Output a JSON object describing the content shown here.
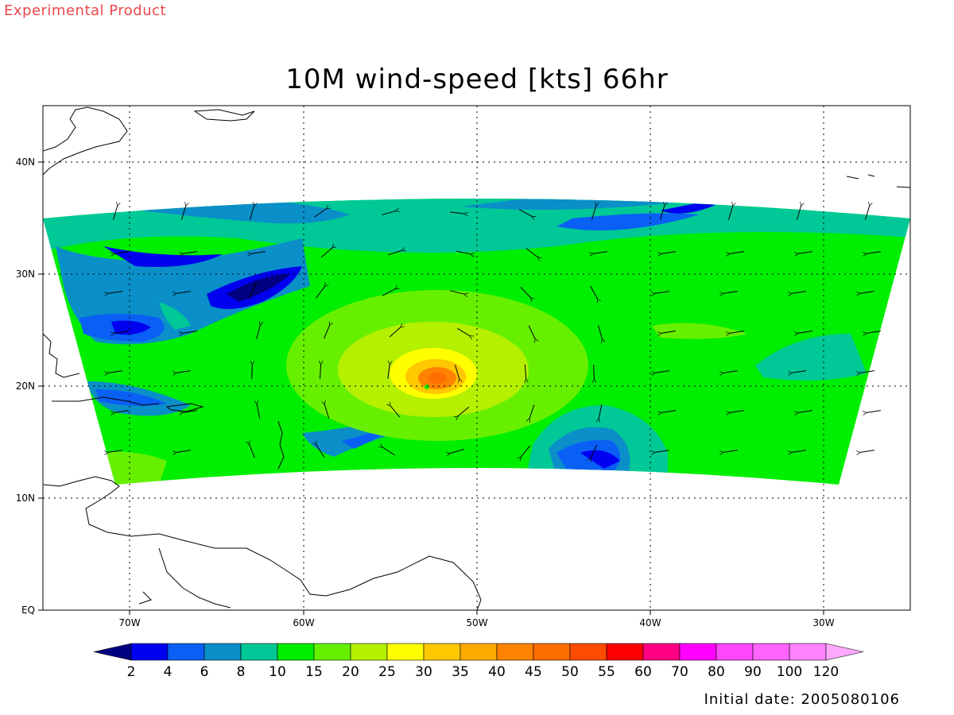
{
  "header": {
    "experimental_label": "Experimental Product",
    "title": "10M wind-speed [kts] 66hr",
    "initial_date": "Initial date: 2005080106"
  },
  "map": {
    "x_labels": [
      "70W",
      "60W",
      "50W",
      "40W",
      "30W"
    ],
    "y_labels": [
      "40N",
      "30N",
      "20N",
      "10N",
      "EQ"
    ],
    "lon_range": [
      -75,
      -25
    ],
    "lat_range": [
      0,
      45
    ]
  },
  "colorbar": {
    "labels": [
      "2",
      "4",
      "6",
      "8",
      "10",
      "15",
      "20",
      "25",
      "30",
      "35",
      "40",
      "45",
      "50",
      "55",
      "60",
      "70",
      "80",
      "90",
      "100",
      "120"
    ],
    "colors": [
      "#000080",
      "#0000f0",
      "#0a5ff5",
      "#0a8fc8",
      "#00c896",
      "#00ee00",
      "#66f000",
      "#b4f000",
      "#ffff00",
      "#ffc800",
      "#ffaa00",
      "#ff8200",
      "#ff6e00",
      "#ff4b00",
      "#ff0000",
      "#ff0082",
      "#ff00ff",
      "#ff46ff",
      "#ff64ff",
      "#ff82ff",
      "#ffaaff"
    ]
  }
}
